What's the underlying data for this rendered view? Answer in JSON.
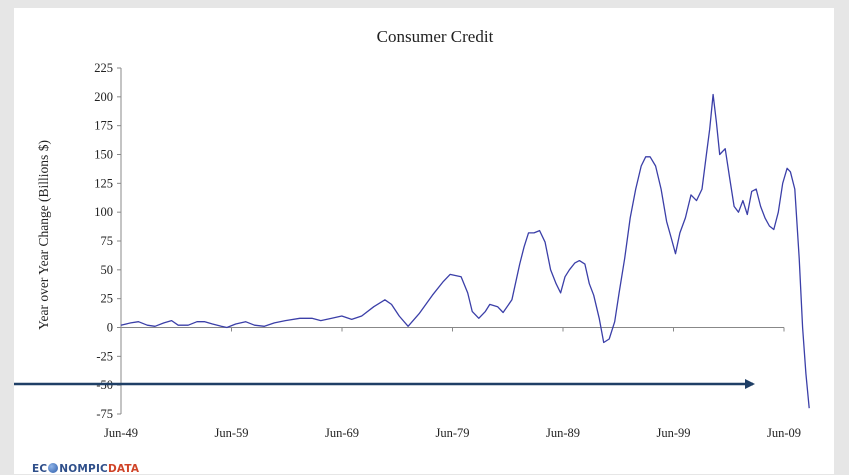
{
  "logo": {
    "part1": "EC",
    "part2": "NOMPIC",
    "part3": "DATA",
    "icon": "globe-icon"
  },
  "annotation": {
    "icon": "arrow-right-icon",
    "color": "#1f3f66"
  },
  "chart_data": {
    "type": "line",
    "title": "Consumer Credit",
    "xlabel": "",
    "ylabel": "Year over Year Change (Billions $)",
    "ylim": [
      -75,
      225
    ],
    "yticks": [
      225,
      200,
      175,
      150,
      125,
      100,
      75,
      50,
      25,
      0,
      -25,
      -50,
      -75
    ],
    "xlim": [
      1949.42,
      2009.42
    ],
    "xticks": [
      {
        "label": "Jun-49",
        "x": 1949.42
      },
      {
        "label": "Jun-59",
        "x": 1959.42
      },
      {
        "label": "Jun-69",
        "x": 1969.42
      },
      {
        "label": "Jun-79",
        "x": 1979.42
      },
      {
        "label": "Jun-89",
        "x": 1989.42
      },
      {
        "label": "Jun-99",
        "x": 1999.42
      },
      {
        "label": "Jun-09",
        "x": 2009.42
      }
    ],
    "grid": false,
    "line_color": "#3b3fa8",
    "series": [
      {
        "points": [
          [
            1949.4,
            2
          ],
          [
            1950.3,
            4
          ],
          [
            1951.0,
            5
          ],
          [
            1951.8,
            2
          ],
          [
            1952.5,
            1
          ],
          [
            1953.3,
            4
          ],
          [
            1954.0,
            6
          ],
          [
            1954.6,
            2
          ],
          [
            1955.5,
            2
          ],
          [
            1956.3,
            5
          ],
          [
            1957.0,
            5
          ],
          [
            1957.7,
            3
          ],
          [
            1958.5,
            1
          ],
          [
            1959.0,
            0
          ],
          [
            1959.8,
            3
          ],
          [
            1960.7,
            5
          ],
          [
            1961.5,
            2
          ],
          [
            1962.4,
            1
          ],
          [
            1963.3,
            4
          ],
          [
            1964.3,
            6
          ],
          [
            1965.6,
            8
          ],
          [
            1966.7,
            8
          ],
          [
            1967.5,
            6
          ],
          [
            1968.5,
            8
          ],
          [
            1969.4,
            10
          ],
          [
            1970.3,
            7
          ],
          [
            1971.2,
            10
          ],
          [
            1972.3,
            18
          ],
          [
            1973.3,
            24
          ],
          [
            1973.9,
            20
          ],
          [
            1974.6,
            10
          ],
          [
            1975.4,
            1
          ],
          [
            1976.4,
            12
          ],
          [
            1977.6,
            28
          ],
          [
            1978.6,
            40
          ],
          [
            1979.2,
            46
          ],
          [
            1980.2,
            44
          ],
          [
            1980.8,
            30
          ],
          [
            1981.2,
            14
          ],
          [
            1981.8,
            8
          ],
          [
            1982.4,
            14
          ],
          [
            1982.8,
            20
          ],
          [
            1983.5,
            18
          ],
          [
            1984.0,
            13
          ],
          [
            1984.8,
            24
          ],
          [
            1985.5,
            55
          ],
          [
            1985.9,
            70
          ],
          [
            1986.3,
            82
          ],
          [
            1986.8,
            82
          ],
          [
            1987.3,
            84
          ],
          [
            1987.8,
            74
          ],
          [
            1988.3,
            50
          ],
          [
            1988.8,
            38
          ],
          [
            1989.2,
            30
          ],
          [
            1989.6,
            44
          ],
          [
            1990.0,
            50
          ],
          [
            1990.5,
            56
          ],
          [
            1990.9,
            58
          ],
          [
            1991.4,
            55
          ],
          [
            1991.8,
            38
          ],
          [
            1992.2,
            28
          ],
          [
            1992.7,
            8
          ],
          [
            1993.1,
            -13
          ],
          [
            1993.6,
            -10
          ],
          [
            1994.1,
            5
          ],
          [
            1994.5,
            30
          ],
          [
            1995.0,
            60
          ],
          [
            1995.5,
            95
          ],
          [
            1996.0,
            120
          ],
          [
            1996.5,
            140
          ],
          [
            1996.9,
            148
          ],
          [
            1997.3,
            148
          ],
          [
            1997.8,
            140
          ],
          [
            1998.3,
            120
          ],
          [
            1998.8,
            92
          ],
          [
            1999.2,
            78
          ],
          [
            1999.6,
            64
          ],
          [
            2000.0,
            82
          ],
          [
            2000.5,
            95
          ],
          [
            2001.0,
            115
          ],
          [
            2001.5,
            110
          ],
          [
            2002.0,
            120
          ],
          [
            2002.4,
            150
          ],
          [
            2002.7,
            172
          ],
          [
            2003.0,
            202
          ],
          [
            2003.3,
            178
          ],
          [
            2003.6,
            150
          ],
          [
            2004.1,
            155
          ],
          [
            2004.5,
            130
          ],
          [
            2004.9,
            105
          ],
          [
            2005.3,
            100
          ],
          [
            2005.7,
            110
          ],
          [
            2006.1,
            98
          ],
          [
            2006.5,
            118
          ],
          [
            2006.9,
            120
          ],
          [
            2007.3,
            105
          ],
          [
            2007.7,
            95
          ],
          [
            2008.1,
            88
          ],
          [
            2008.5,
            85
          ],
          [
            2008.9,
            100
          ],
          [
            2009.3,
            125
          ],
          [
            2009.7,
            138
          ],
          [
            2010.0,
            135
          ],
          [
            2010.4,
            120
          ],
          [
            2010.8,
            60
          ],
          [
            2011.1,
            0
          ],
          [
            2011.4,
            -40
          ],
          [
            2011.7,
            -70
          ]
        ]
      }
    ]
  }
}
